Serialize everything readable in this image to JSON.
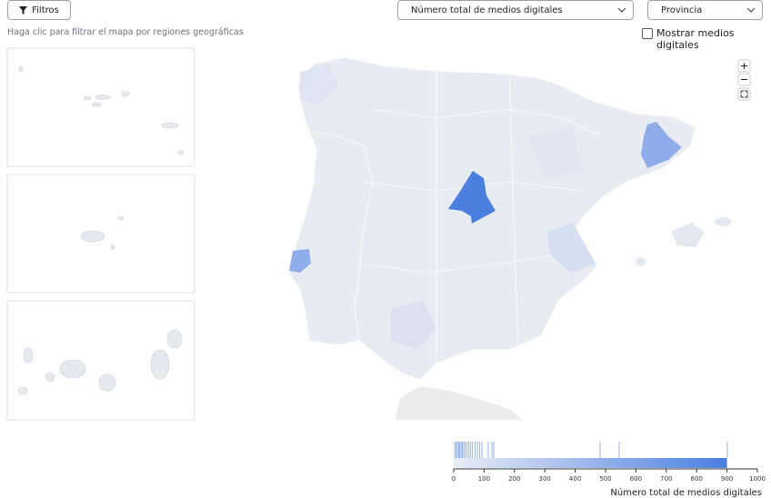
{
  "controls": {
    "filter_button": "Filtros",
    "metric_select": "Número total de medios digitales",
    "level_select": "Provincia",
    "hint": "Haga clic para filtrar el mapa por regiones geográficas",
    "checkbox_label": "Mostrar medios digitales",
    "zoom_in": "+",
    "zoom_out": "−"
  },
  "legend": {
    "title": "Número total de medios digitales",
    "domain": [
      0,
      1000
    ],
    "ticks": [
      0,
      100,
      200,
      300,
      400,
      500,
      600,
      700,
      800,
      900,
      1000
    ],
    "gradient_max": 900,
    "colors": [
      "#e9edf6",
      "#4a7fe0"
    ],
    "rug": [
      3,
      8,
      12,
      16,
      20,
      24,
      28,
      33,
      38,
      44,
      50,
      56,
      62,
      70,
      78,
      86,
      93,
      114,
      126,
      132,
      482,
      545,
      901
    ]
  }
}
